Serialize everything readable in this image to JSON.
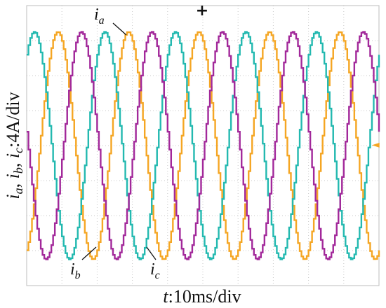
{
  "chart_data": {
    "type": "line",
    "title": "",
    "xlabel_var": "t",
    "xlabel_rest": ":10ms/div",
    "ylabel": "i_a, i_b, i_c:4A/div",
    "ylabel_parts": {
      "a": "i",
      "a_sub": "a",
      "b": "i",
      "b_sub": "b",
      "c": "i",
      "c_sub": "c",
      "unit": ":4A/div"
    },
    "x_divisions": 10,
    "y_divisions": 8,
    "xlim": [
      0,
      100
    ],
    "ylim": [
      -16,
      16
    ],
    "grid": true,
    "series": [
      {
        "name": "i_a",
        "label": "i",
        "sub": "a",
        "color": "#f5a623",
        "amplitude_A": 13,
        "period_ms": 20,
        "phase_deg": -67,
        "steps_per_period": 40
      },
      {
        "name": "i_b",
        "label": "i",
        "sub": "b",
        "color": "#23b9b0",
        "amplitude_A": 13,
        "period_ms": 20,
        "phase_deg": 53,
        "steps_per_period": 40
      },
      {
        "name": "i_c",
        "label": "i",
        "sub": "c",
        "color": "#a2289a",
        "amplitude_A": 13,
        "period_ms": 20,
        "phase_deg": 173,
        "steps_per_period": 40
      }
    ],
    "markers": {
      "top_marker": "+",
      "right_marker": "◄"
    }
  }
}
